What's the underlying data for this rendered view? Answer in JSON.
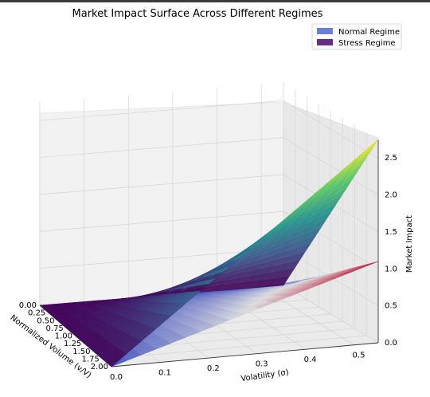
{
  "chart_data": {
    "type": "surface",
    "title": "Market Impact Surface Across Different Regimes",
    "xlabel": "Volatility (σ)",
    "ylabel": "Normalized Volume (v/V)",
    "zlabel": "Market Impact",
    "x_ticks": [
      "0.0",
      "0.1",
      "0.2",
      "0.3",
      "0.4",
      "0.5"
    ],
    "y_ticks": [
      "0.00",
      "0.25",
      "0.50",
      "0.75",
      "1.00",
      "1.25",
      "1.50",
      "1.75",
      "2.00"
    ],
    "z_ticks": [
      "0.0",
      "0.5",
      "1.0",
      "1.5",
      "2.0",
      "2.5"
    ],
    "xlim": [
      0.0,
      0.55
    ],
    "ylim": [
      0.0,
      2.0
    ],
    "zlim": [
      0.0,
      2.75
    ],
    "legend_position": "top-right",
    "grid": true,
    "series": [
      {
        "name": "Normal Regime",
        "colormap": "coolwarm",
        "legend_color": "#6f7fd8",
        "corner_values": [
          {
            "sigma": 0.0,
            "volume": 0.0,
            "impact": 0.0
          },
          {
            "sigma": 0.0,
            "volume": 2.0,
            "impact": 0.0
          },
          {
            "sigma": 0.55,
            "volume": 0.0,
            "impact": 0.0
          },
          {
            "sigma": 0.55,
            "volume": 2.0,
            "impact": 1.1
          }
        ]
      },
      {
        "name": "Stress Regime",
        "colormap": "viridis",
        "legend_color": "#6a2c8a",
        "corner_values": [
          {
            "sigma": 0.0,
            "volume": 0.0,
            "impact": 0.0
          },
          {
            "sigma": 0.0,
            "volume": 2.0,
            "impact": 0.0
          },
          {
            "sigma": 0.55,
            "volume": 0.0,
            "impact": 0.0
          },
          {
            "sigma": 0.55,
            "volume": 2.0,
            "impact": 2.75
          }
        ]
      }
    ]
  }
}
